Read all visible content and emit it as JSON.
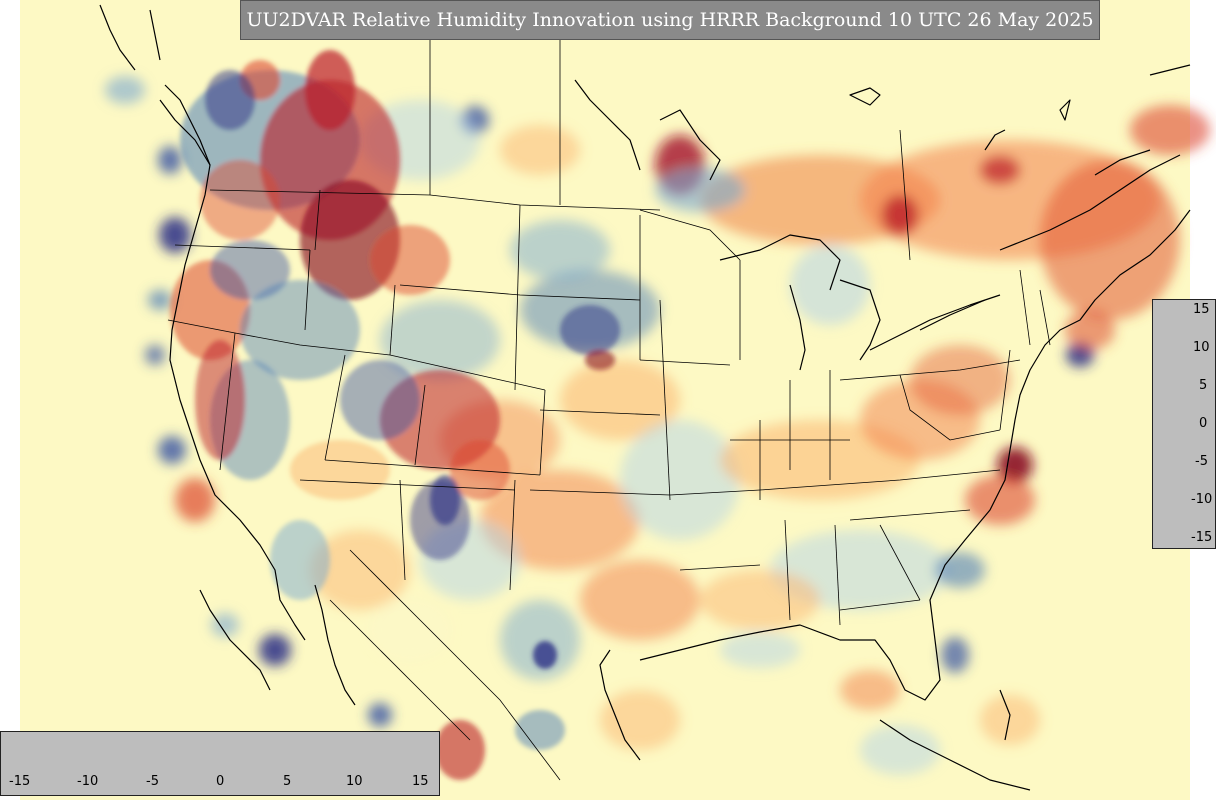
{
  "title": "UU2DVAR Relative Humidity Innovation using HRRR Background 10 UTC 26 May 2025",
  "colorbar": {
    "min": -15,
    "max": 15,
    "ticks": [
      "-15",
      "-10",
      "-5",
      "0",
      "5",
      "10",
      "15"
    ],
    "colors": [
      "#2b2f86",
      "#3954a4",
      "#4f7fb8",
      "#7aa9d0",
      "#b4d3e7",
      "#e2eef4",
      "#fbf7c8",
      "#fde2a0",
      "#fcb56f",
      "#f2804a",
      "#dd4a31",
      "#bb1d2a",
      "#8a0c22"
    ]
  },
  "map": {
    "background_color": "#fdf9c4",
    "coastline_color": "#000000",
    "border_color": "#000000"
  }
}
